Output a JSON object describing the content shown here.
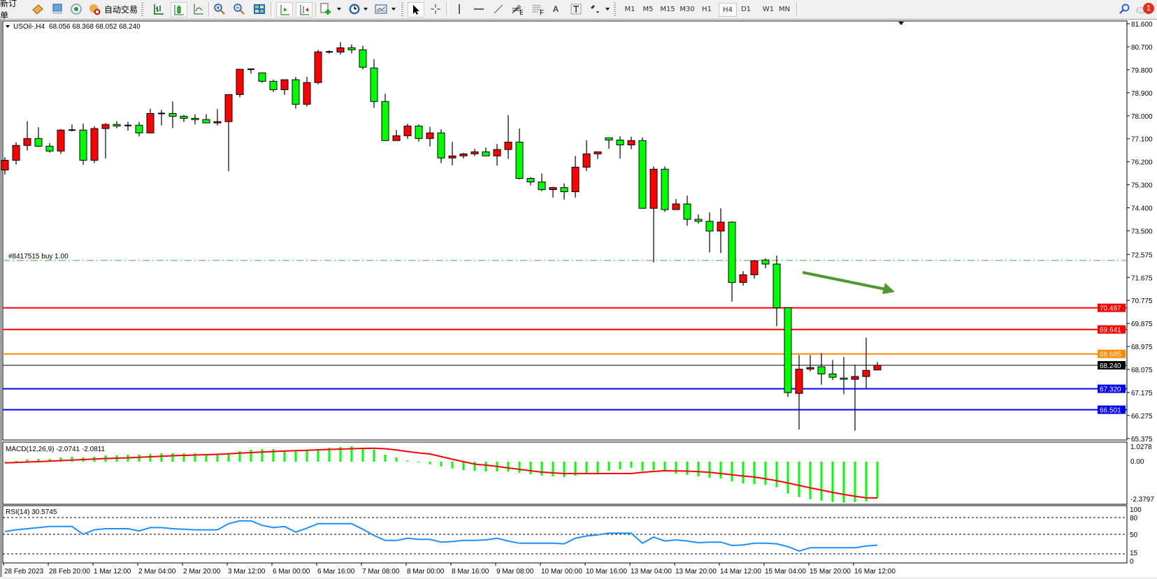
{
  "toolbar": {
    "new_order": "新订单",
    "auto_trading": "自动交易",
    "timeframes": [
      "M1",
      "M5",
      "M15",
      "M30",
      "H1",
      "H4",
      "D1",
      "W1",
      "MN"
    ],
    "active_timeframe": "H4",
    "notification_count": "1",
    "icons": [
      "market-watch-icon",
      "navigator-icon",
      "signals-icon",
      "auto-trading-icon",
      "bar-chart-icon",
      "candlestick-icon",
      "line-chart-icon",
      "zoom-in-icon",
      "zoom-out-icon",
      "tile-windows-icon",
      "auto-scroll-icon",
      "chart-shift-icon",
      "new-chart-icon",
      "periods-clock-icon",
      "templates-icon",
      "cursor-icon",
      "crosshair-icon",
      "vertical-line-icon",
      "horizontal-line-icon",
      "trend-line-icon",
      "fibo-expansion-icon",
      "fibo-fan-icon",
      "text-icon",
      "text-label-icon",
      "arrows-icon",
      "search-icon",
      "chat-icon"
    ]
  },
  "chart_data": {
    "type": "candlestick",
    "header": {
      "symbol": "USOil-,H4",
      "ohlc": "68.056 68.368 68.052 68.240"
    },
    "price_ticks": [
      "81.600",
      "80.700",
      "79.800",
      "78.900",
      "78.000",
      "77.100",
      "76.200",
      "75.300",
      "74.400",
      "73.500",
      "72.575",
      "71.675",
      "70.775",
      "69.875",
      "68.975",
      "68.075",
      "67.175",
      "66.275",
      "65.375"
    ],
    "time_labels": [
      "28 Feb 2023",
      "28 Feb 20:00",
      "1 Mar 12:00",
      "2 Mar 04:00",
      "2 Mar 20:00",
      "3 Mar 12:00",
      "6 Mar 00:00",
      "6 Mar 16:00",
      "7 Mar 08:00",
      "8 Mar 00:00",
      "8 Mar 16:00",
      "9 Mar 08:00",
      "10 Mar 00:00",
      "10 Mar 16:00",
      "13 Mar 04:00",
      "13 Mar 20:00",
      "14 Mar 12:00",
      "15 Mar 04:00",
      "15 Mar 20:00",
      "16 Mar 12:00"
    ],
    "colors": {
      "bull": "#ff0000",
      "bear": "#00ff00",
      "outline": "#000000"
    },
    "candles_ohlc": [
      [
        75.88,
        76.38,
        75.7,
        76.26
      ],
      [
        76.26,
        76.96,
        76.09,
        76.84
      ],
      [
        76.84,
        77.79,
        76.64,
        77.11
      ],
      [
        77.11,
        77.55,
        76.78,
        76.81
      ],
      [
        76.81,
        76.93,
        76.56,
        76.62
      ],
      [
        76.62,
        77.48,
        76.51,
        77.44
      ],
      [
        77.44,
        77.66,
        77.39,
        77.44
      ],
      [
        77.44,
        77.69,
        76.09,
        76.26
      ],
      [
        76.26,
        77.59,
        76.15,
        77.5
      ],
      [
        77.5,
        77.71,
        76.33,
        77.66
      ],
      [
        77.66,
        77.79,
        77.51,
        77.6
      ],
      [
        77.62,
        77.76,
        77.42,
        77.62
      ],
      [
        77.63,
        77.76,
        77.19,
        77.33
      ],
      [
        77.33,
        78.28,
        77.33,
        78.09
      ],
      [
        78.09,
        78.23,
        77.62,
        78.09
      ],
      [
        78.09,
        78.56,
        77.52,
        77.98
      ],
      [
        77.98,
        78.03,
        77.76,
        77.9
      ],
      [
        77.9,
        78.06,
        77.66,
        77.85
      ],
      [
        77.85,
        78.06,
        77.72,
        77.72
      ],
      [
        77.72,
        78.26,
        77.62,
        77.77
      ],
      [
        77.77,
        78.83,
        75.83,
        78.83
      ],
      [
        78.83,
        79.82,
        78.72,
        79.82
      ],
      [
        79.82,
        79.82,
        79.65,
        79.82
      ],
      [
        79.68,
        79.68,
        79.29,
        79.35
      ],
      [
        79.35,
        79.41,
        78.93,
        79.02
      ],
      [
        79.02,
        79.41,
        78.82,
        79.41
      ],
      [
        79.41,
        79.52,
        78.28,
        78.45
      ],
      [
        78.45,
        79.52,
        78.36,
        79.3
      ],
      [
        79.3,
        80.58,
        79.23,
        80.5
      ],
      [
        80.5,
        80.56,
        80.43,
        80.5
      ],
      [
        80.49,
        80.88,
        80.4,
        80.66
      ],
      [
        80.66,
        80.79,
        80.44,
        80.58
      ],
      [
        80.58,
        80.74,
        79.81,
        79.9
      ],
      [
        79.87,
        80.21,
        78.31,
        78.56
      ],
      [
        78.56,
        78.86,
        77.03,
        77.03
      ],
      [
        77.03,
        77.44,
        77.03,
        77.22
      ],
      [
        77.22,
        77.69,
        77.1,
        77.6
      ],
      [
        77.6,
        77.66,
        76.99,
        77.11
      ],
      [
        77.11,
        77.57,
        76.8,
        77.33
      ],
      [
        77.33,
        77.47,
        76.15,
        76.35
      ],
      [
        76.35,
        76.98,
        76.06,
        76.43
      ],
      [
        76.43,
        76.55,
        76.33,
        76.51
      ],
      [
        76.51,
        76.71,
        76.42,
        76.59
      ],
      [
        76.59,
        76.76,
        76.43,
        76.43
      ],
      [
        76.43,
        76.9,
        76.05,
        76.68
      ],
      [
        76.68,
        78.02,
        76.31,
        76.97
      ],
      [
        76.97,
        77.5,
        75.51,
        75.55
      ],
      [
        75.55,
        75.6,
        75.28,
        75.41
      ],
      [
        75.41,
        75.74,
        75.05,
        75.11
      ],
      [
        75.11,
        75.22,
        74.8,
        75.19
      ],
      [
        75.19,
        75.35,
        74.72,
        75.03
      ],
      [
        75.03,
        76.43,
        74.8,
        75.99
      ],
      [
        75.99,
        77.04,
        75.84,
        76.51
      ],
      [
        76.51,
        76.59,
        76.31,
        76.59
      ],
      [
        77.14,
        77.14,
        76.71,
        77.05
      ],
      [
        77.05,
        77.2,
        76.33,
        76.86
      ],
      [
        76.86,
        77.18,
        76.69,
        77.03
      ],
      [
        77.03,
        77.15,
        74.38,
        74.38
      ],
      [
        74.38,
        76.02,
        72.26,
        75.91
      ],
      [
        75.91,
        76.02,
        74.24,
        74.33
      ],
      [
        74.33,
        74.74,
        74.33,
        74.55
      ],
      [
        74.55,
        74.88,
        73.7,
        73.95
      ],
      [
        73.95,
        74.14,
        73.78,
        73.87
      ],
      [
        73.87,
        74.22,
        72.66,
        73.49
      ],
      [
        73.49,
        74.38,
        72.63,
        73.84
      ],
      [
        73.84,
        73.87,
        70.73,
        71.48
      ],
      [
        71.48,
        71.92,
        71.36,
        71.78
      ],
      [
        71.78,
        72.36,
        71.63,
        72.33
      ],
      [
        72.36,
        72.42,
        72.03,
        72.2
      ],
      [
        72.2,
        72.53,
        69.77,
        70.49
      ],
      [
        70.49,
        70.49,
        67.0,
        67.17
      ],
      [
        67.14,
        68.64,
        65.73,
        68.09
      ],
      [
        68.09,
        68.64,
        68.0,
        68.15
      ],
      [
        68.18,
        68.72,
        67.48,
        67.9
      ],
      [
        67.9,
        68.45,
        67.66,
        67.77
      ],
      [
        67.74,
        68.56,
        67.11,
        67.69
      ],
      [
        67.69,
        68.26,
        65.68,
        67.8
      ],
      [
        67.8,
        69.32,
        67.33,
        68.04
      ],
      [
        68.056,
        68.368,
        68.052,
        68.24
      ]
    ],
    "horizontal_lines": [
      {
        "label": "70.487",
        "price": 70.487,
        "color": "#ff0000"
      },
      {
        "label": "69.641",
        "price": 69.641,
        "color": "#ff0000"
      },
      {
        "label": "68.685",
        "price": 68.685,
        "color": "#ff8c00"
      },
      {
        "label": "68.240",
        "price": 68.24,
        "color": "#000000"
      },
      {
        "label": "67.320",
        "price": 67.32,
        "color": "#0000ff"
      },
      {
        "label": "66.501",
        "price": 66.501,
        "color": "#0000ff"
      }
    ],
    "order_line": {
      "label": "#8417515 buy 1.00",
      "price": 72.34,
      "color": "#3cb043"
    },
    "annotation_arrow": {
      "direction": "down-right",
      "color": "#4e9a2e"
    },
    "macd": {
      "label": "MACD(12,26,9) -2.0741 -2.0811",
      "axis_labels": [
        "1.0278",
        "0.00",
        "-2.3797"
      ],
      "range": [
        -2.3797,
        1.0278
      ],
      "histogram_color": "#00ff00",
      "signal_color": "#ff0000",
      "main": [
        0.01,
        0.04,
        0.12,
        0.16,
        0.16,
        0.24,
        0.28,
        0.24,
        0.28,
        0.36,
        0.36,
        0.4,
        0.4,
        0.44,
        0.48,
        0.48,
        0.48,
        0.48,
        0.44,
        0.44,
        0.44,
        0.6,
        0.68,
        0.72,
        0.72,
        0.64,
        0.64,
        0.68,
        0.72,
        0.8,
        0.85,
        0.88,
        0.8,
        0.69,
        0.4,
        0.24,
        0.06,
        -0.05,
        -0.15,
        -0.27,
        -0.39,
        -0.48,
        -0.53,
        -0.56,
        -0.56,
        -0.56,
        -0.64,
        -0.72,
        -0.8,
        -0.84,
        -0.88,
        -0.8,
        -0.64,
        -0.64,
        -0.52,
        -0.44,
        -0.35,
        -0.52,
        -0.48,
        -0.56,
        -0.68,
        -0.76,
        -0.84,
        -0.93,
        -0.97,
        -1.13,
        -1.25,
        -1.29,
        -1.33,
        -1.46,
        -1.82,
        -2.03,
        -2.15,
        -2.23,
        -2.31,
        -2.35,
        -2.31,
        -2.27,
        -2.0741
      ],
      "signal": [
        -0.07,
        -0.05,
        -0.02,
        0.0,
        0.03,
        0.06,
        0.09,
        0.12,
        0.15,
        0.18,
        0.2,
        0.22,
        0.25,
        0.28,
        0.31,
        0.34,
        0.36,
        0.38,
        0.4,
        0.42,
        0.45,
        0.49,
        0.52,
        0.55,
        0.58,
        0.61,
        0.63,
        0.65,
        0.68,
        0.7,
        0.72,
        0.74,
        0.76,
        0.77,
        0.74,
        0.67,
        0.58,
        0.5,
        0.44,
        0.29,
        0.14,
        0.0,
        -0.14,
        -0.2,
        -0.27,
        -0.36,
        -0.44,
        -0.52,
        -0.6,
        -0.64,
        -0.68,
        -0.68,
        -0.68,
        -0.68,
        -0.68,
        -0.68,
        -0.68,
        -0.61,
        -0.56,
        -0.52,
        -0.53,
        -0.54,
        -0.57,
        -0.61,
        -0.68,
        -0.75,
        -0.82,
        -0.88,
        -0.98,
        -1.09,
        -1.22,
        -1.36,
        -1.5,
        -1.63,
        -1.76,
        -1.88,
        -1.98,
        -2.07,
        -2.0811
      ]
    },
    "rsi": {
      "label": "RSI(14) 30.5745",
      "axis_labels": [
        "100",
        "80",
        "50",
        "15",
        "0"
      ],
      "levels": [
        80,
        50,
        15
      ],
      "color": "#1e90ff",
      "values": [
        55,
        58,
        60,
        62,
        64,
        64,
        64,
        50,
        58,
        60,
        60,
        60,
        56,
        62,
        62,
        60,
        59,
        58,
        58,
        58,
        69,
        74,
        74,
        66,
        62,
        64,
        54,
        61,
        69,
        69,
        69,
        69,
        59,
        48,
        39,
        39,
        43,
        41,
        41,
        36,
        37,
        39,
        39,
        40,
        43,
        38,
        34,
        34,
        34,
        34,
        33,
        43,
        47,
        49,
        52,
        52,
        52,
        34,
        45,
        38,
        40,
        38,
        35,
        36,
        36,
        30,
        31,
        34,
        34,
        33,
        28,
        20,
        26,
        26,
        26,
        26,
        26,
        29,
        30.5745
      ]
    }
  }
}
